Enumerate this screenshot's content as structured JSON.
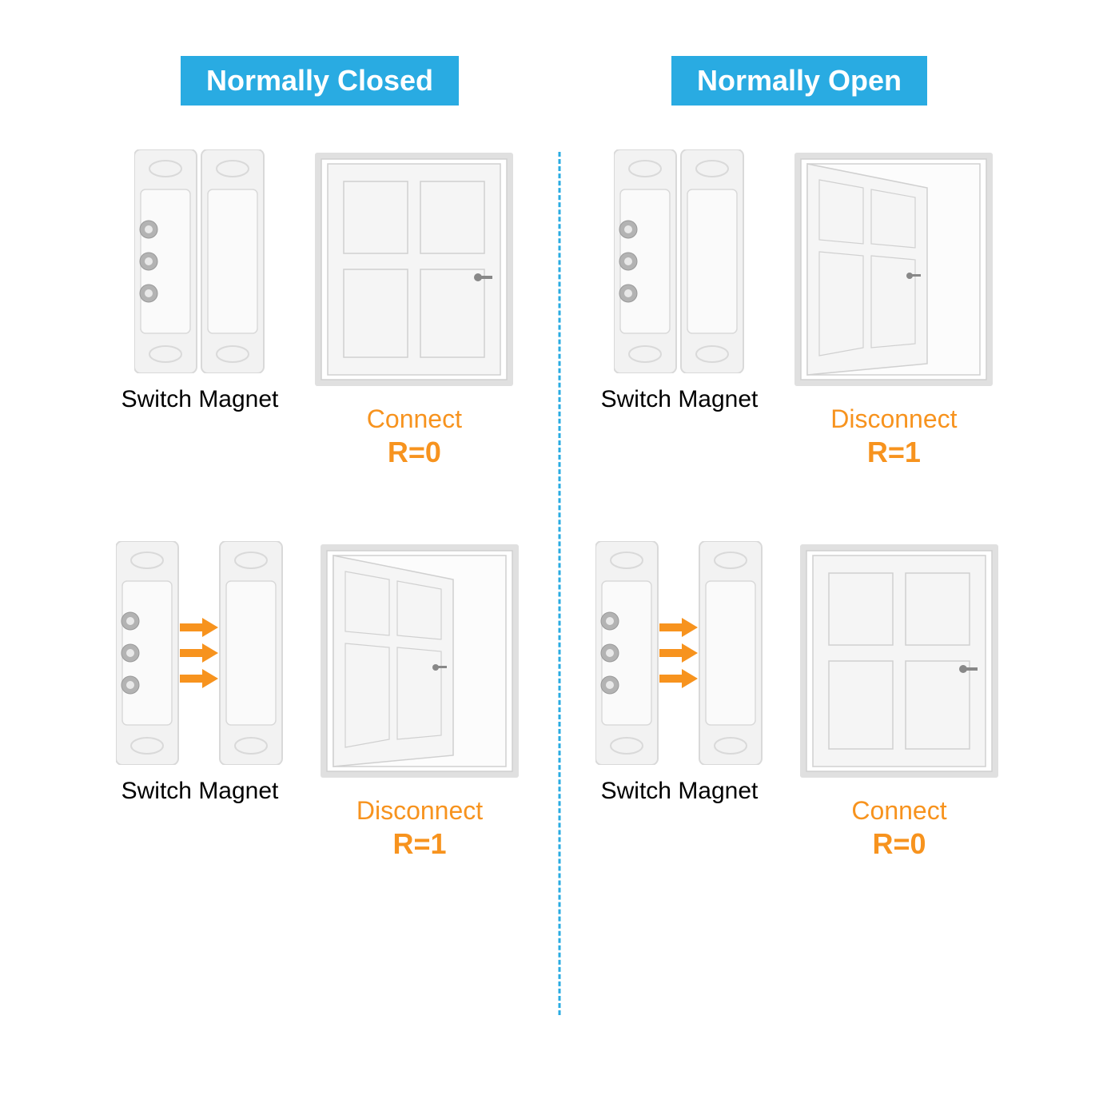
{
  "colors": {
    "header_bg": "#29abe2",
    "header_text": "#ffffff",
    "divider": "#29abe2",
    "label_text": "#000000",
    "status_text": "#f7931e",
    "arrow": "#f7931e",
    "sensor_body": "#f2f2f2",
    "sensor_edge": "#d9d9d9",
    "sensor_shadow": "#cccccc",
    "terminal": "#b3b3b3",
    "door_frame": "#e0e0e0",
    "door_panel": "#f5f5f5",
    "door_line": "#d0d0d0",
    "handle": "#888888"
  },
  "left": {
    "title": "Normally Closed",
    "top": {
      "switch_label": "Switch",
      "magnet_label": "Magnet",
      "status": "Connect",
      "value": "R=0",
      "door_open": false,
      "separated": false
    },
    "bottom": {
      "switch_label": "Switch",
      "magnet_label": "Magnet",
      "status": "Disconnect",
      "value": "R=1",
      "door_open": true,
      "separated": true
    }
  },
  "right": {
    "title": "Normally Open",
    "top": {
      "switch_label": "Switch",
      "magnet_label": "Magnet",
      "status": "Disconnect",
      "value": "R=1",
      "door_open": true,
      "separated": false
    },
    "bottom": {
      "switch_label": "Switch",
      "magnet_label": "Magnet",
      "status": "Connect",
      "value": "R=0",
      "door_open": false,
      "separated": true
    }
  },
  "layout": {
    "header_fontsize": 36,
    "label_fontsize": 30,
    "status_fontsize": 32,
    "value_fontsize": 36,
    "sensor_height": 280,
    "door_width": 260,
    "door_height": 300
  }
}
